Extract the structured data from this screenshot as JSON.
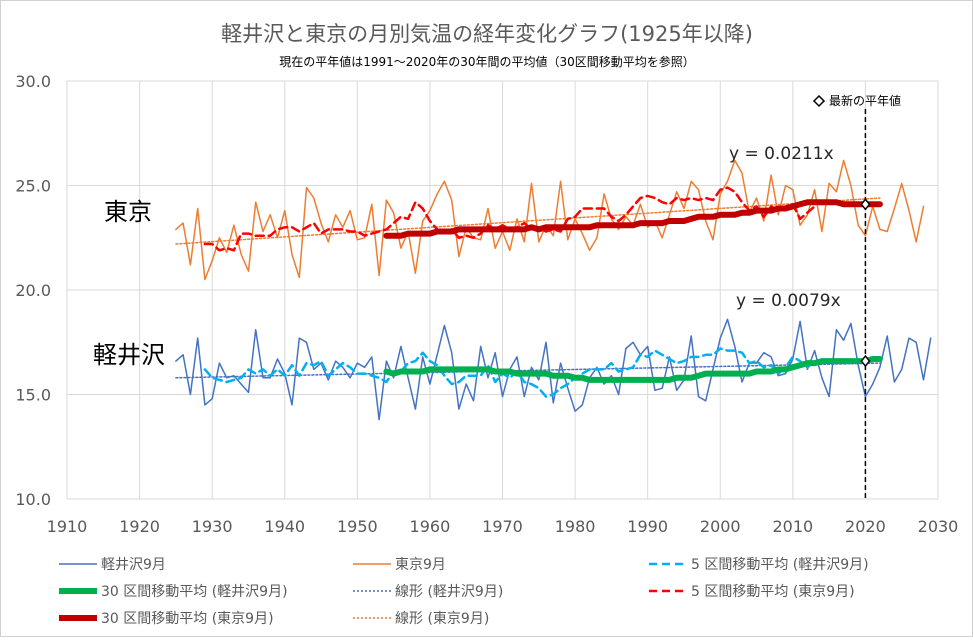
{
  "chart_data": {
    "type": "line",
    "title": "軽井沢と東京の月別気温の経年変化グラフ(1925年以降)",
    "subtitle": "現在の平年値は1991～2020年の30年間の平均値（30区間移動平均を参照）",
    "xlabel": "",
    "ylabel": "",
    "xlim": [
      1910,
      2030
    ],
    "ylim": [
      10,
      30
    ],
    "x_ticks": [
      "1910",
      "1920",
      "1930",
      "1940",
      "1950",
      "1960",
      "1970",
      "1980",
      "1990",
      "2000",
      "2010",
      "2020",
      "2030"
    ],
    "y_ticks": [
      "10.0",
      "15.0",
      "20.0",
      "25.0",
      "30.0"
    ],
    "grid": true,
    "legend_position": "bottom",
    "x_start": 1925,
    "annotations": {
      "tokyo_label": "東京",
      "karuizawa_label": "軽井沢",
      "tokyo_trend_eq": "y = 0.0211x",
      "karuizawa_trend_eq": "y = 0.0079x",
      "latest_normal_label": "最新の平年値",
      "latest_normal_year": 2020,
      "latest_normal_tokyo": 24.1,
      "latest_normal_karuizawa": 16.6
    },
    "series": [
      {
        "name": "軽井沢9月",
        "color": "#4472c4",
        "style": "solid",
        "width": 1.5,
        "start": 1925,
        "values": [
          16.6,
          16.9,
          15.0,
          17.7,
          14.5,
          14.8,
          16.5,
          15.8,
          15.9,
          15.5,
          15.1,
          18.1,
          15.8,
          15.8,
          16.7,
          16.0,
          14.5,
          17.7,
          17.5,
          16.2,
          16.5,
          15.7,
          16.6,
          16.3,
          15.8,
          16.5,
          16.3,
          16.8,
          13.8,
          16.6,
          15.8,
          17.3,
          15.8,
          14.3,
          16.8,
          15.5,
          16.9,
          18.3,
          17.0,
          14.3,
          15.5,
          14.7,
          17.3,
          15.8,
          17.0,
          14.9,
          16.2,
          16.8,
          14.9,
          16.3,
          15.7,
          17.5,
          14.6,
          16.5,
          15.3,
          14.2,
          14.5,
          15.8,
          16.3,
          15.5,
          15.9,
          15.0,
          17.2,
          17.5,
          16.9,
          17.3,
          15.2,
          15.3,
          16.8,
          15.2,
          15.7,
          17.8,
          14.9,
          14.7,
          16.2,
          17.7,
          18.6,
          17.3,
          15.6,
          16.5,
          16.5,
          17.0,
          16.8,
          15.9,
          16.0,
          16.7,
          18.5,
          16.2,
          17.1,
          15.8,
          14.9,
          18.1,
          17.6,
          18.4,
          16.4,
          14.9,
          15.5,
          16.3,
          17.8,
          15.6,
          16.2,
          17.7,
          17.5,
          15.7,
          17.7
        ]
      },
      {
        "name": "東京9月",
        "color": "#ed7d31",
        "style": "solid",
        "width": 1.5,
        "start": 1925,
        "values": [
          22.9,
          23.2,
          21.2,
          23.9,
          20.5,
          21.4,
          22.5,
          21.8,
          23.1,
          21.7,
          20.9,
          24.2,
          22.8,
          23.6,
          22.5,
          23.8,
          21.7,
          20.6,
          24.9,
          24.4,
          23.2,
          22.3,
          23.6,
          23.0,
          23.8,
          22.4,
          22.5,
          24.1,
          20.7,
          24.3,
          23.7,
          22.0,
          22.8,
          20.8,
          23.3,
          23.8,
          24.6,
          25.2,
          24.3,
          21.6,
          23.0,
          22.5,
          22.4,
          23.9,
          22.0,
          22.8,
          21.9,
          23.4,
          22.3,
          25.1,
          22.3,
          23.1,
          22.6,
          25.2,
          22.4,
          23.4,
          22.7,
          21.9,
          22.5,
          24.6,
          23.4,
          22.9,
          23.5,
          23.1,
          24.1,
          23.0,
          23.3,
          22.5,
          23.6,
          24.7,
          23.9,
          25.2,
          24.8,
          23.3,
          22.4,
          24.6,
          25.2,
          26.2,
          25.6,
          23.7,
          24.4,
          23.3,
          25.5,
          23.6,
          25.0,
          24.8,
          23.1,
          23.6,
          24.8,
          22.8,
          25.1,
          24.7,
          26.2,
          25.0,
          23.1,
          22.6,
          24.0,
          22.9,
          22.8,
          23.9,
          25.1,
          23.8,
          22.3,
          24.0
        ]
      },
      {
        "name": "5 区間移動平均 (軽井沢9月)",
        "color": "#00b0f0",
        "style": "dashed",
        "width": 2.5,
        "start": 1929,
        "values": [
          16.2,
          15.8,
          15.7,
          15.6,
          15.7,
          15.8,
          16.2,
          16.0,
          16.2,
          15.9,
          16.2,
          15.9,
          16.4,
          15.9,
          16.5,
          16.4,
          16.6,
          15.9,
          16.2,
          16.5,
          16.3,
          16.0,
          16.0,
          15.9,
          15.8,
          15.6,
          16.1,
          16.1,
          16.5,
          16.6,
          17.0,
          16.6,
          16.4,
          15.9,
          15.5,
          15.6,
          15.9,
          15.9,
          15.9,
          16.4,
          15.6,
          16.0,
          15.8,
          16.1,
          15.6,
          15.5,
          15.3,
          14.9,
          15.0,
          15.3,
          15.5,
          15.8,
          16.0,
          16.2,
          16.2,
          16.2,
          16.5,
          16.1,
          16.2,
          16.3,
          16.9,
          16.8,
          17.1,
          16.9,
          16.7,
          16.5,
          16.6,
          16.8,
          16.8,
          16.9,
          16.9,
          17.2,
          17.1,
          17.1,
          17.0,
          16.5,
          16.6,
          16.3,
          16.4,
          16.0,
          16.3,
          16.8,
          16.6,
          16.3,
          16.6
        ]
      },
      {
        "name": "30 区間移動平均 (軽井沢9月)",
        "color": "#00b050",
        "style": "solid",
        "width": 6,
        "start": 1954,
        "values": [
          16.1,
          16.0,
          16.1,
          16.1,
          16.1,
          16.1,
          16.2,
          16.2,
          16.2,
          16.2,
          16.2,
          16.2,
          16.2,
          16.2,
          16.2,
          16.1,
          16.1,
          16.1,
          16.0,
          16.0,
          16.0,
          16.0,
          16.0,
          15.9,
          15.9,
          15.9,
          15.8,
          15.8,
          15.7,
          15.7,
          15.7,
          15.7,
          15.7,
          15.7,
          15.7,
          15.7,
          15.7,
          15.7,
          15.7,
          15.7,
          15.8,
          15.8,
          15.8,
          15.9,
          16.0,
          16.0,
          16.0,
          16.0,
          16.0,
          16.0,
          16.0,
          16.1,
          16.1,
          16.1,
          16.2,
          16.2,
          16.3,
          16.4,
          16.5,
          16.5,
          16.6,
          16.6,
          16.6,
          16.6,
          16.6,
          16.6,
          16.6,
          16.7,
          16.7
        ]
      },
      {
        "name": "線形 (軽井沢9月)",
        "color": "#4472c4",
        "style": "dotted",
        "width": 1.5,
        "trend": [
          [
            1925,
            15.8
          ],
          [
            2022,
            16.5
          ]
        ]
      },
      {
        "name": "5 区間移動平均 (東京9月)",
        "color": "#ff0000",
        "style": "dashed",
        "width": 2.5,
        "start": 1929,
        "values": [
          22.2,
          22.2,
          21.9,
          22.0,
          21.9,
          22.7,
          22.7,
          22.6,
          22.6,
          22.6,
          22.9,
          23.0,
          23.0,
          22.8,
          23.0,
          23.2,
          22.7,
          22.9,
          22.9,
          22.9,
          22.8,
          22.8,
          22.6,
          22.7,
          22.8,
          22.9,
          23.2,
          23.5,
          23.4,
          24.2,
          23.9,
          23.3,
          22.9,
          22.8,
          22.9,
          22.5,
          22.6,
          22.5,
          22.7,
          23.1,
          22.9,
          23.1,
          22.9,
          23.0,
          23.2,
          22.9,
          23.0,
          22.8,
          22.9,
          22.8,
          23.4,
          23.5,
          23.9,
          23.9,
          23.9,
          23.9,
          23.5,
          23.3,
          23.6,
          24.0,
          24.4,
          24.5,
          24.4,
          24.2,
          24.1,
          24.4,
          24.3,
          24.4,
          24.3,
          24.4,
          24.3,
          24.8,
          24.9,
          24.7,
          24.2,
          23.8,
          24.0,
          23.5,
          24.0,
          23.8,
          24.0,
          24.1,
          23.4,
          23.7,
          24.0
        ]
      },
      {
        "name": "30 区間移動平均 (東京9月)",
        "color": "#c00000",
        "style": "solid",
        "width": 6,
        "start": 1954,
        "values": [
          22.6,
          22.6,
          22.6,
          22.7,
          22.7,
          22.7,
          22.7,
          22.8,
          22.8,
          22.8,
          22.9,
          22.9,
          22.9,
          22.9,
          22.9,
          22.9,
          22.9,
          22.9,
          22.9,
          22.9,
          23.0,
          22.9,
          23.0,
          23.0,
          23.0,
          23.0,
          23.0,
          23.0,
          23.0,
          23.1,
          23.1,
          23.1,
          23.1,
          23.1,
          23.1,
          23.2,
          23.2,
          23.2,
          23.2,
          23.3,
          23.3,
          23.3,
          23.4,
          23.5,
          23.5,
          23.5,
          23.6,
          23.6,
          23.6,
          23.7,
          23.7,
          23.8,
          23.8,
          23.8,
          23.9,
          23.9,
          24.0,
          24.1,
          24.2,
          24.2,
          24.2,
          24.2,
          24.2,
          24.1,
          24.1,
          24.1,
          24.1,
          24.1,
          24.1
        ]
      },
      {
        "name": "線形 (東京9月)",
        "color": "#ed7d31",
        "style": "dotted",
        "width": 1.5,
        "trend": [
          [
            1925,
            22.2
          ],
          [
            2022,
            24.4
          ]
        ]
      }
    ]
  }
}
